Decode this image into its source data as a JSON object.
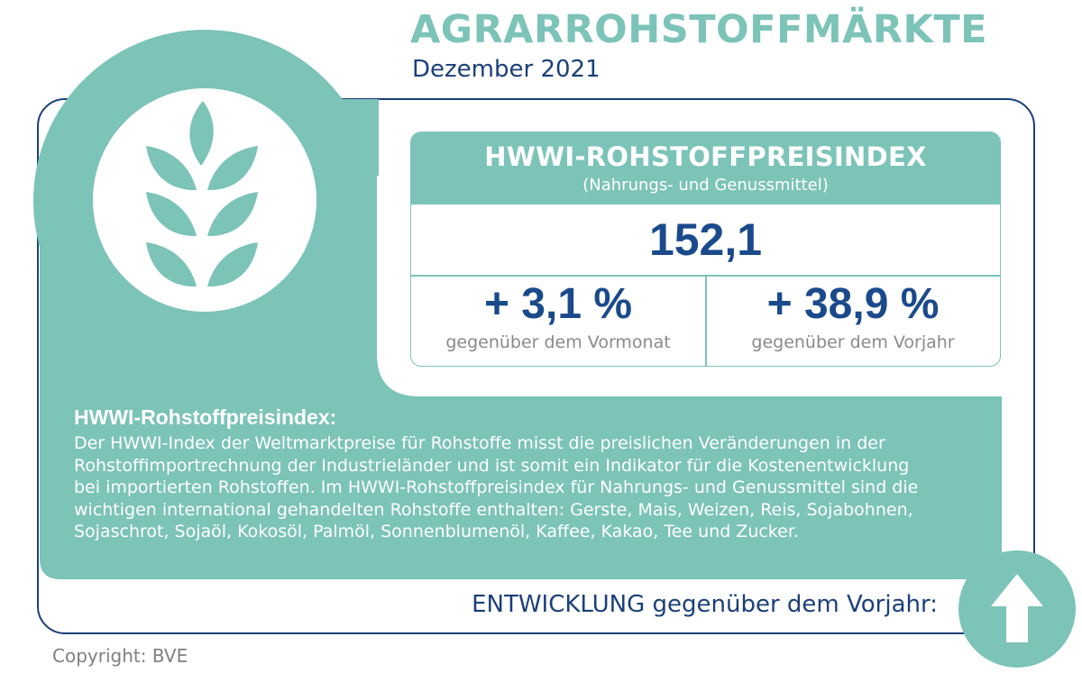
{
  "title": "AGRARROHSTOFFMÄRKTE",
  "subtitle": "Dezember 2021",
  "index_box": {
    "title": "HWWI-ROHSTOFFPREISINDEX",
    "subtitle": "(Nahrungs- und Genussmittel)",
    "value": "152,1",
    "month_change": "+ 3,1 %",
    "month_change_label": "gegenüber dem Vormonat",
    "year_change": "+ 38,9 %",
    "year_change_label": "gegenüber dem Vorjahr"
  },
  "description": {
    "heading": "HWWI-Rohstoffpreisindex:",
    "lines": [
      "Der HWWI-Index der Weltmarktpreise für Rohstoffe misst die preislichen Veränderungen in der",
      "Rohstoffimportrechnung der Industrieländer und ist somit ein Indikator für die Kostenentwicklung",
      "bei importierten Rohstoffen. Im HWWI-Rohstoffpreisindex für Nahrungs- und Genussmittel sind die",
      "wichtigen international gehandelten Rohstoffe enthalten: Gerste, Mais, Weizen, Reis, Sojabohnen,",
      "Sojaschrot, Sojaöl, Kokosöl, Palmöl, Sonnenblumenöl, Kaffee, Kakao, Tee und Zucker."
    ]
  },
  "trend": {
    "label": "ENTWICKLUNG gegenüber dem Vorjahr:",
    "direction": "up",
    "icon": "arrow-up-icon"
  },
  "copyright": "Copyright: BVE",
  "icons": {
    "emblem": "wheat-icon"
  },
  "colors": {
    "teal": "#7cc3b8",
    "navy": "#1b3f7a",
    "value_blue": "#1b4a8c",
    "grey": "#808080"
  }
}
